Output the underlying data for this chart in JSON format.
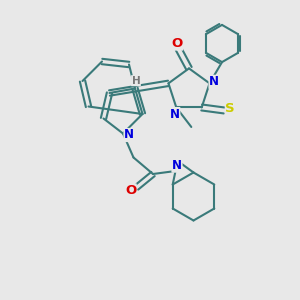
{
  "bg_color": "#e8e8e8",
  "bond_color": "#3a7a7a",
  "N_color": "#0000dd",
  "O_color": "#dd0000",
  "S_color": "#cccc00",
  "H_color": "#777777",
  "line_width": 1.5,
  "font_size": 8.5,
  "xlim": [
    0,
    10
  ],
  "ylim": [
    0,
    10
  ],
  "figsize": [
    3.0,
    3.0
  ],
  "dpi": 100
}
